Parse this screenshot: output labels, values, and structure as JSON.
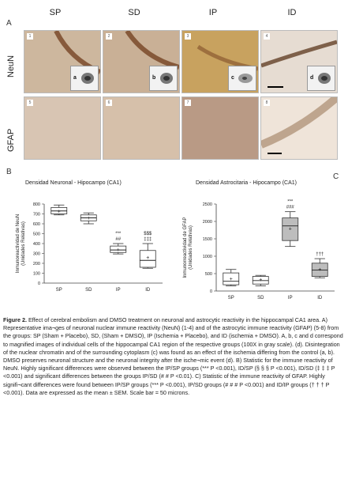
{
  "panel_labels": {
    "a": "A",
    "b": "B",
    "c": "C"
  },
  "columns": [
    "SP",
    "SD",
    "IP",
    "ID"
  ],
  "rows": [
    "NeuN",
    "GFAP"
  ],
  "image_numbers": [
    "1",
    "2",
    "3",
    "4",
    "5",
    "6",
    "7",
    "8"
  ],
  "inset_letters": [
    "a",
    "b",
    "c",
    "d"
  ],
  "colors": {
    "neun_bg": "#cdb79e",
    "neun_bg_ip": "#c8a25f",
    "neun_bg_id": "#e6dcd2",
    "gfap_bg": "#d8c5b3",
    "gfap_bg_ip": "#b99a85",
    "gfap_bg_id": "#efe4d9",
    "band": "#7a4a2a",
    "box_fill_ip": "#bdbdbd",
    "box_fill_id_b": "#bdbdbd"
  },
  "chart_data": [
    {
      "type": "box",
      "title": "Densidad Neuronal - Hipocampo (CA1)",
      "ylabel_line1": "Inmunoreactividad de NeuN",
      "ylabel_line2": "(Unidades Relativas)",
      "ylim": [
        0,
        800
      ],
      "yticks": [
        "0",
        "100",
        "200",
        "300",
        "400",
        "500",
        "600",
        "700",
        "800"
      ],
      "categories": [
        "SP",
        "SD",
        "IP",
        "ID"
      ],
      "boxes": [
        {
          "min": 690,
          "q1": 700,
          "median": 730,
          "q3": 765,
          "max": 790,
          "mean": 730
        },
        {
          "min": 600,
          "q1": 630,
          "median": 660,
          "q3": 690,
          "max": 710,
          "mean": 660
        },
        {
          "min": 295,
          "q1": 310,
          "median": 335,
          "q3": 375,
          "max": 400,
          "mean": 340
        },
        {
          "min": 150,
          "q1": 160,
          "median": 230,
          "q3": 330,
          "max": 400,
          "mean": 260
        }
      ],
      "annotations": [
        {
          "category": "IP",
          "lines": [
            "***",
            "##"
          ]
        },
        {
          "category": "ID",
          "lines": [
            "$$$",
            "‡‡‡"
          ]
        }
      ]
    },
    {
      "type": "box",
      "title": "Densidad Astrocitaria - Hipocampo (CA1)",
      "ylabel_line1": "Inmunorreactividad de GFAP",
      "ylabel_line2": "(Unidades Relativas)",
      "ylim": [
        0,
        2500
      ],
      "yticks": [
        "0",
        "500",
        "1000",
        "1500",
        "2000",
        "2500"
      ],
      "categories": [
        "SP",
        "SD",
        "IP",
        "ID"
      ],
      "boxes": [
        {
          "min": 150,
          "q1": 180,
          "median": 280,
          "q3": 520,
          "max": 620,
          "mean": 350
        },
        {
          "min": 150,
          "q1": 200,
          "median": 300,
          "q3": 420,
          "max": 450,
          "mean": 330
        },
        {
          "min": 1280,
          "q1": 1450,
          "median": 1870,
          "q3": 2100,
          "max": 2280,
          "mean": 1800
        },
        {
          "min": 380,
          "q1": 420,
          "median": 600,
          "q3": 800,
          "max": 930,
          "mean": 620
        }
      ],
      "annotations": [
        {
          "category": "IP",
          "lines": [
            "***",
            "###"
          ]
        },
        {
          "category": "ID",
          "lines": [
            "†††"
          ]
        }
      ]
    }
  ],
  "caption": {
    "bold": "Figure 2.",
    "text": " Effect of cerebral embolism and DMSO treatment on neuronal and astrocytic reactivity in the hippocampal CA1 area. A) Representative ima¬ges of neuronal nuclear immune reactivity (NeuN) (1-4) and of the astrocytic immune reactivity (GFAP) (5-8) from the groups: SP (Sham + Placebo), SD, (Sham + DMSO), IP (Ischemia + Placebo), and ID (ischemia + DMSO). A, b, c and d correspond to magnified images of individual cells of the hippocampal CA1 region of the respective groups (100X in gray scale). (d). Disintegration of the nuclear chromatin and of the surrounding cytoplasm (c) was found as an effect of the ischemia differing from the control (a, b). DMSO preserves neuronal structure and the neuronal integrity after the ische¬mic event (d). B) Statistic for the immune reactivity of NeuN. Highly significant differences were observed between the IP/SP groups (*** P <0.001), ID/SP (§ § § P <0.001), ID/SD (‡ ‡ ‡ P <0.001) and significant differences between the groups IP/SD (# # P <0.01). C) Statistic of the immune reactivity of GFAP. Highly signifi¬cant differences were found between IP/SP groups (*** P <0.001), IP/SD groups (# # # P <0.001) and ID/IP groups († † † P <0.001). Data are expressed as the mean ± SEM. Scale bar = 50 microns."
  }
}
